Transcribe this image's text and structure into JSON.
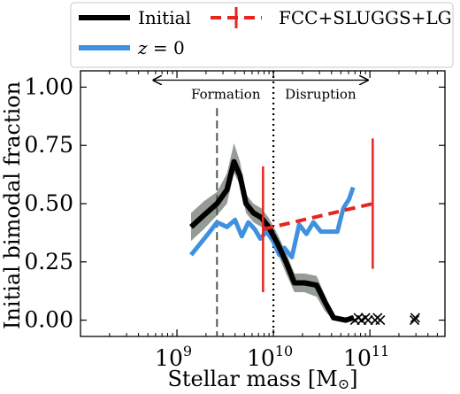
{
  "chart_data": {
    "type": "line",
    "xlabel": "Stellar mass [M⊙]",
    "ylabel": "Initial bimodal fraction",
    "xscale": "log",
    "xlim": [
      100000000.0,
      600000000000.0
    ],
    "ylim": [
      -0.07,
      1.07
    ],
    "x_ticks": [
      {
        "value": 1000000000.0,
        "label": "10",
        "exp": "9"
      },
      {
        "value": 10000000000.0,
        "label": "10",
        "exp": "10"
      },
      {
        "value": 100000000000.0,
        "label": "10",
        "exp": "11"
      }
    ],
    "y_ticks": [
      {
        "value": 0.0,
        "label": "0.00"
      },
      {
        "value": 0.25,
        "label": "0.25"
      },
      {
        "value": 0.5,
        "label": "0.50"
      },
      {
        "value": 0.75,
        "label": "0.75"
      },
      {
        "value": 1.0,
        "label": "1.00"
      }
    ],
    "legend": {
      "position": "top",
      "entries": [
        {
          "label": "Initial",
          "color": "#000000",
          "style": "line"
        },
        {
          "label": "FCC+SLUGGS+LG",
          "color": "#e8241f",
          "style": "dashed-errorbar"
        },
        {
          "label": "z = 0",
          "label_italic_part": "z",
          "label_rest": " = 0",
          "color": "#3f91e0",
          "style": "line"
        }
      ]
    },
    "series": [
      {
        "name": "Initial",
        "color": "#000000",
        "x": [
          1400000000.0,
          1900000000.0,
          2600000000.0,
          3300000000.0,
          3900000000.0,
          4500000000.0,
          5200000000.0,
          6200000000.0,
          7500000000.0,
          8900000000.0,
          11000000000.0,
          13500000000.0,
          16500000000.0,
          21000000000.0,
          28000000000.0,
          34000000000.0,
          42000000000.0,
          56000000000.0,
          68000000000.0
        ],
        "y": [
          0.4,
          0.45,
          0.5,
          0.56,
          0.68,
          0.62,
          0.5,
          0.46,
          0.44,
          0.4,
          0.33,
          0.25,
          0.16,
          0.16,
          0.15,
          0.08,
          0.01,
          0.0,
          0.01
        ],
        "band_lower": [
          0.34,
          0.39,
          0.45,
          0.5,
          0.63,
          0.58,
          0.46,
          0.42,
          0.4,
          0.36,
          0.29,
          0.2,
          0.12,
          0.12,
          0.1,
          0.04,
          0.0,
          0.0,
          0.0
        ],
        "band_upper": [
          0.46,
          0.51,
          0.55,
          0.63,
          0.76,
          0.68,
          0.54,
          0.5,
          0.48,
          0.44,
          0.37,
          0.29,
          0.2,
          0.2,
          0.19,
          0.11,
          0.02,
          0.0,
          0.02
        ],
        "band_color": "#8f978f"
      },
      {
        "name": "z = 0",
        "color": "#3f91e0",
        "x": [
          1400000000.0,
          2100000000.0,
          2600000000.0,
          3300000000.0,
          4000000000.0,
          4700000000.0,
          5500000000.0,
          6400000000.0,
          7300000000.0,
          8500000000.0,
          9900000000.0,
          11500000000.0,
          13000000000.0,
          15500000000.0,
          18500000000.0,
          22000000000.0,
          26000000000.0,
          31000000000.0,
          39000000000.0,
          46000000000.0,
          53000000000.0,
          61000000000.0,
          67000000000.0
        ],
        "y": [
          0.28,
          0.37,
          0.42,
          0.4,
          0.43,
          0.36,
          0.42,
          0.39,
          0.35,
          0.38,
          0.34,
          0.28,
          0.31,
          0.27,
          0.41,
          0.37,
          0.42,
          0.38,
          0.38,
          0.38,
          0.48,
          0.52,
          0.57
        ]
      }
    ],
    "reference": {
      "name": "FCC+SLUGGS+LG",
      "color": "#e8241f",
      "x": [
        7800000000.0,
        107000000000.0
      ],
      "y": [
        0.39,
        0.5
      ],
      "err_low": [
        0.27,
        0.28
      ],
      "err_high": [
        0.27,
        0.28
      ]
    },
    "crosses": {
      "marker": "x",
      "color": "#000000",
      "x": [
        70000000000.0,
        76000000000.0,
        82000000000.0,
        90000000000.0,
        96000000000.0,
        113000000000.0,
        120000000000.0,
        128000000000.0,
        290000000000.0,
        295000000000.0
      ],
      "y": [
        0.0,
        0.01,
        0.0,
        0.01,
        0.0,
        0.0,
        0.01,
        0.0,
        0.0,
        0.01
      ]
    },
    "vlines": [
      {
        "x": 2600000000.0,
        "style": "dashed",
        "color": "#4d5a4f",
        "y_top": 0.91
      },
      {
        "x": 10000000000.0,
        "style": "dotted",
        "color": "#000000"
      }
    ],
    "annotations": {
      "arrow": {
        "x_start": 570000000.0,
        "x_end": 95000000000.0,
        "y": 1.03
      },
      "formation_label": "Formation",
      "disruption_label": "Disruption"
    }
  }
}
